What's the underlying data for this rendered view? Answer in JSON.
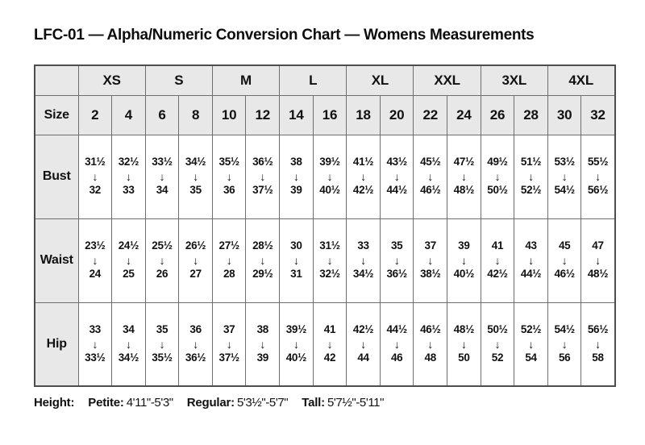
{
  "title": "LFC-01 — Alpha/Numeric Conversion Chart — Womens Measurements",
  "table": {
    "arrow": "↓",
    "alpha_sizes": [
      "XS",
      "S",
      "M",
      "L",
      "XL",
      "XXL",
      "3XL",
      "4XL"
    ],
    "size_row_label": "Size",
    "sizes": [
      "2",
      "4",
      "6",
      "8",
      "10",
      "12",
      "14",
      "16",
      "18",
      "20",
      "22",
      "24",
      "26",
      "28",
      "30",
      "32"
    ],
    "rows": [
      {
        "label": "Bust",
        "ranges": [
          [
            "31½",
            "32"
          ],
          [
            "32½",
            "33"
          ],
          [
            "33½",
            "34"
          ],
          [
            "34½",
            "35"
          ],
          [
            "35½",
            "36"
          ],
          [
            "36½",
            "37½"
          ],
          [
            "38",
            "39"
          ],
          [
            "39½",
            "40½"
          ],
          [
            "41½",
            "42½"
          ],
          [
            "43½",
            "44½"
          ],
          [
            "45½",
            "46½"
          ],
          [
            "47½",
            "48½"
          ],
          [
            "49½",
            "50½"
          ],
          [
            "51½",
            "52½"
          ],
          [
            "53½",
            "54½"
          ],
          [
            "55½",
            "56½"
          ]
        ]
      },
      {
        "label": "Waist",
        "ranges": [
          [
            "23½",
            "24"
          ],
          [
            "24½",
            "25"
          ],
          [
            "25½",
            "26"
          ],
          [
            "26½",
            "27"
          ],
          [
            "27½",
            "28"
          ],
          [
            "28½",
            "29½"
          ],
          [
            "30",
            "31"
          ],
          [
            "31½",
            "32½"
          ],
          [
            "33",
            "34½"
          ],
          [
            "35",
            "36½"
          ],
          [
            "37",
            "38½"
          ],
          [
            "39",
            "40½"
          ],
          [
            "41",
            "42½"
          ],
          [
            "43",
            "44½"
          ],
          [
            "45",
            "46½"
          ],
          [
            "47",
            "48½"
          ]
        ]
      },
      {
        "label": "Hip",
        "ranges": [
          [
            "33",
            "33½"
          ],
          [
            "34",
            "34½"
          ],
          [
            "35",
            "35½"
          ],
          [
            "36",
            "36½"
          ],
          [
            "37",
            "37½"
          ],
          [
            "38",
            "39"
          ],
          [
            "39½",
            "40½"
          ],
          [
            "41",
            "42"
          ],
          [
            "42½",
            "44"
          ],
          [
            "44½",
            "46"
          ],
          [
            "46½",
            "48"
          ],
          [
            "48½",
            "50"
          ],
          [
            "50½",
            "52"
          ],
          [
            "52½",
            "54"
          ],
          [
            "54½",
            "56"
          ],
          [
            "56½",
            "58"
          ]
        ]
      }
    ]
  },
  "footer": {
    "height_label": "Height:",
    "segments": [
      {
        "label": "Petite:",
        "value": "4'11\"-5'3\""
      },
      {
        "label": "Regular:",
        "value": "5'3½\"-5'7\""
      },
      {
        "label": "Tall:",
        "value": "5'7½\"-5'11\""
      }
    ]
  }
}
